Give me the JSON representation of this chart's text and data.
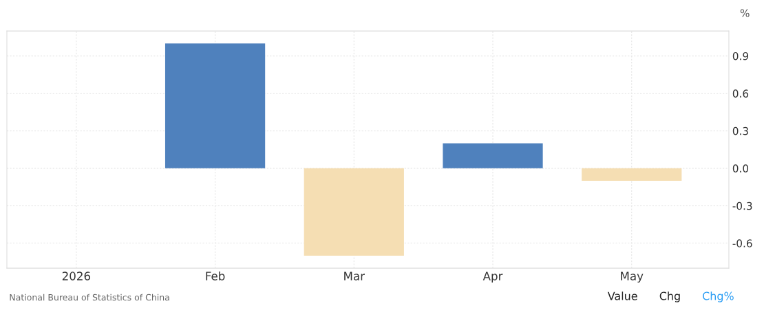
{
  "chart_data": {
    "type": "bar",
    "ylabel": "%",
    "categories": [
      "2026",
      "Feb",
      "Mar",
      "Apr",
      "May"
    ],
    "values": [
      null,
      1.0,
      -0.7,
      0.2,
      -0.1
    ],
    "colors": [
      "#4f81bd",
      "#4f81bd",
      "#f5deb3",
      "#4f81bd",
      "#f5deb3"
    ],
    "ylim": [
      -0.8,
      1.1
    ],
    "yticks": [
      -0.6,
      -0.3,
      {
        "value": 0,
        "label": "0.0"
      },
      0.3,
      0.6,
      0.9
    ],
    "grid": true,
    "annotations": [
      "National Bureau of Statistics of China",
      "Value",
      "Chg",
      "Chg%"
    ]
  }
}
